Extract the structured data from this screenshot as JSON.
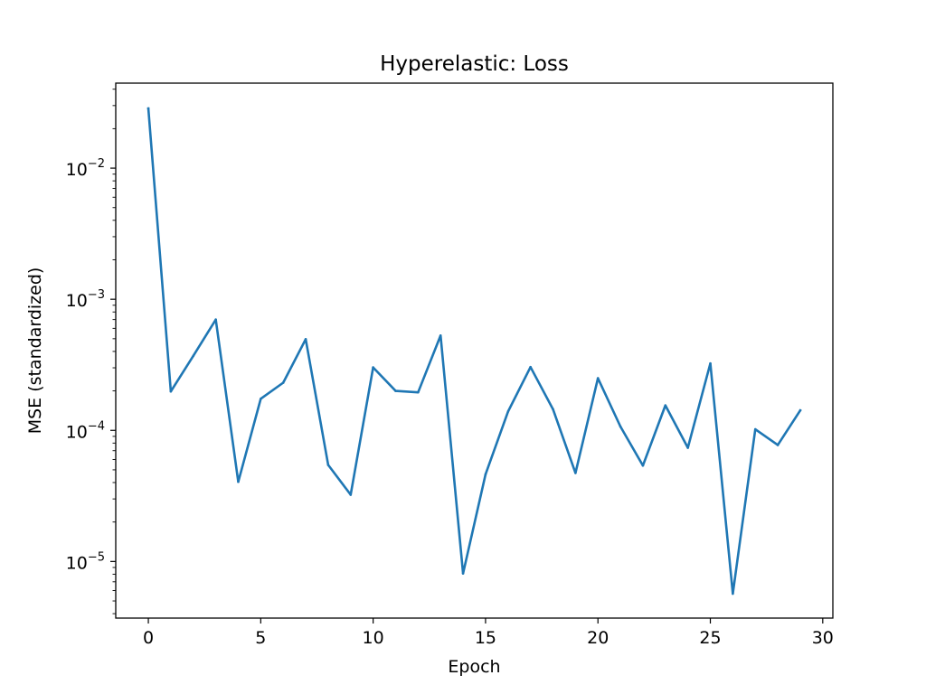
{
  "chart_data": {
    "type": "line",
    "title": "Hyperelastic: Loss",
    "xlabel": "Epoch",
    "ylabel": "MSE (standardized)",
    "yscale": "log",
    "xlim": [
      -1.45,
      30.45
    ],
    "ylim": [
      3.7e-06,
      0.0445
    ],
    "x_ticks": [
      0,
      5,
      10,
      15,
      20,
      25,
      30
    ],
    "x_tick_labels": [
      "0",
      "5",
      "10",
      "15",
      "20",
      "25",
      "30"
    ],
    "y_ticks": [
      1e-05,
      0.0001,
      0.001,
      0.01
    ],
    "y_tick_labels": [
      {
        "base": "10",
        "exp": "−5"
      },
      {
        "base": "10",
        "exp": "−4"
      },
      {
        "base": "10",
        "exp": "−3"
      },
      {
        "base": "10",
        "exp": "−2"
      }
    ],
    "grid": false,
    "series": [
      {
        "color": "#1f77b4",
        "x": [
          0,
          1,
          2,
          3,
          4,
          5,
          6,
          7,
          8,
          9,
          10,
          11,
          12,
          13,
          14,
          15,
          16,
          17,
          18,
          19,
          20,
          21,
          22,
          23,
          24,
          25,
          26,
          27,
          28,
          29
        ],
        "y": [
          0.0285,
          0.000198,
          0.00037,
          0.0007,
          4.05e-05,
          0.000174,
          0.000231,
          0.000496,
          5.45e-05,
          3.23e-05,
          0.000302,
          0.0002,
          0.000195,
          0.000529,
          8.1e-06,
          4.62e-05,
          0.000139,
          0.000304,
          0.000145,
          4.73e-05,
          0.00025,
          0.000107,
          5.39e-05,
          0.000155,
          7.37e-05,
          0.000324,
          5.68e-06,
          0.000102,
          7.73e-05,
          0.000142
        ]
      }
    ]
  }
}
